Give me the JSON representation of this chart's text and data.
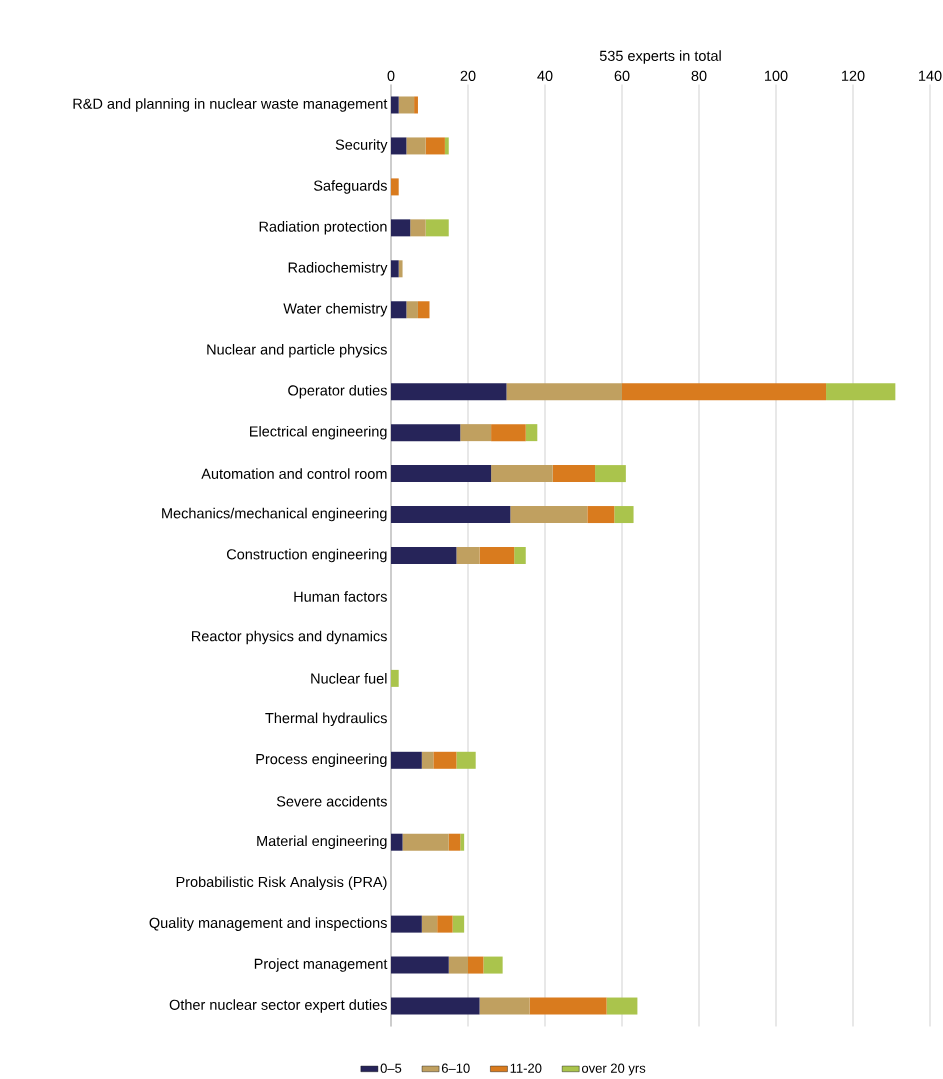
{
  "chart_data": {
    "type": "bar",
    "orientation": "horizontal",
    "stacked": true,
    "xlabel": "535 experts in total",
    "categories": [
      "R&D and planning in nuclear waste management",
      "Security",
      "Safeguards",
      "Radiation protection",
      "Radiochemistry",
      "Water chemistry",
      "Nuclear and particle physics",
      "Operator duties",
      "Electrical engineering",
      "Automation and control room",
      "Mechanics/mechanical engineering",
      "Construction engineering",
      "Human factors",
      "Reactor physics and dynamics",
      "Nuclear fuel",
      "Thermal hydraulics",
      "Process engineering",
      "Severe accidents",
      "Material engineering",
      "Probabilistic Risk Analysis (PRA)",
      "Quality management and inspections",
      "Project management",
      "Other nuclear sector expert duties"
    ],
    "series": [
      {
        "name": "0–5",
        "color": "#262459",
        "values": [
          2,
          4,
          0,
          5,
          2,
          4,
          0,
          30,
          18,
          26,
          31,
          17,
          0,
          0,
          0,
          0,
          8,
          0,
          3,
          0,
          8,
          15,
          23
        ]
      },
      {
        "name": "6–10",
        "color": "#c0a060",
        "values": [
          4,
          5,
          0,
          4,
          1,
          3,
          0,
          30,
          8,
          16,
          20,
          6,
          0,
          0,
          0,
          0,
          3,
          0,
          12,
          0,
          4,
          5,
          13
        ]
      },
      {
        "name": "11-20",
        "color": "#d97b1e",
        "values": [
          1,
          5,
          2,
          0,
          0,
          3,
          0,
          53,
          9,
          11,
          7,
          9,
          0,
          0,
          0,
          0,
          6,
          0,
          3,
          0,
          4,
          4,
          20
        ]
      },
      {
        "name": "over 20 yrs",
        "color": "#aac44c",
        "values": [
          0,
          1,
          0,
          6,
          0,
          0,
          0,
          18,
          3,
          8,
          5,
          3,
          0,
          0,
          2,
          0,
          5,
          0,
          1,
          0,
          3,
          5,
          8
        ]
      }
    ],
    "xlim": [
      0,
      140
    ],
    "xticks": [
      0,
      20,
      40,
      60,
      80,
      100,
      120,
      140
    ],
    "grid": "x",
    "legend": "bottom"
  }
}
